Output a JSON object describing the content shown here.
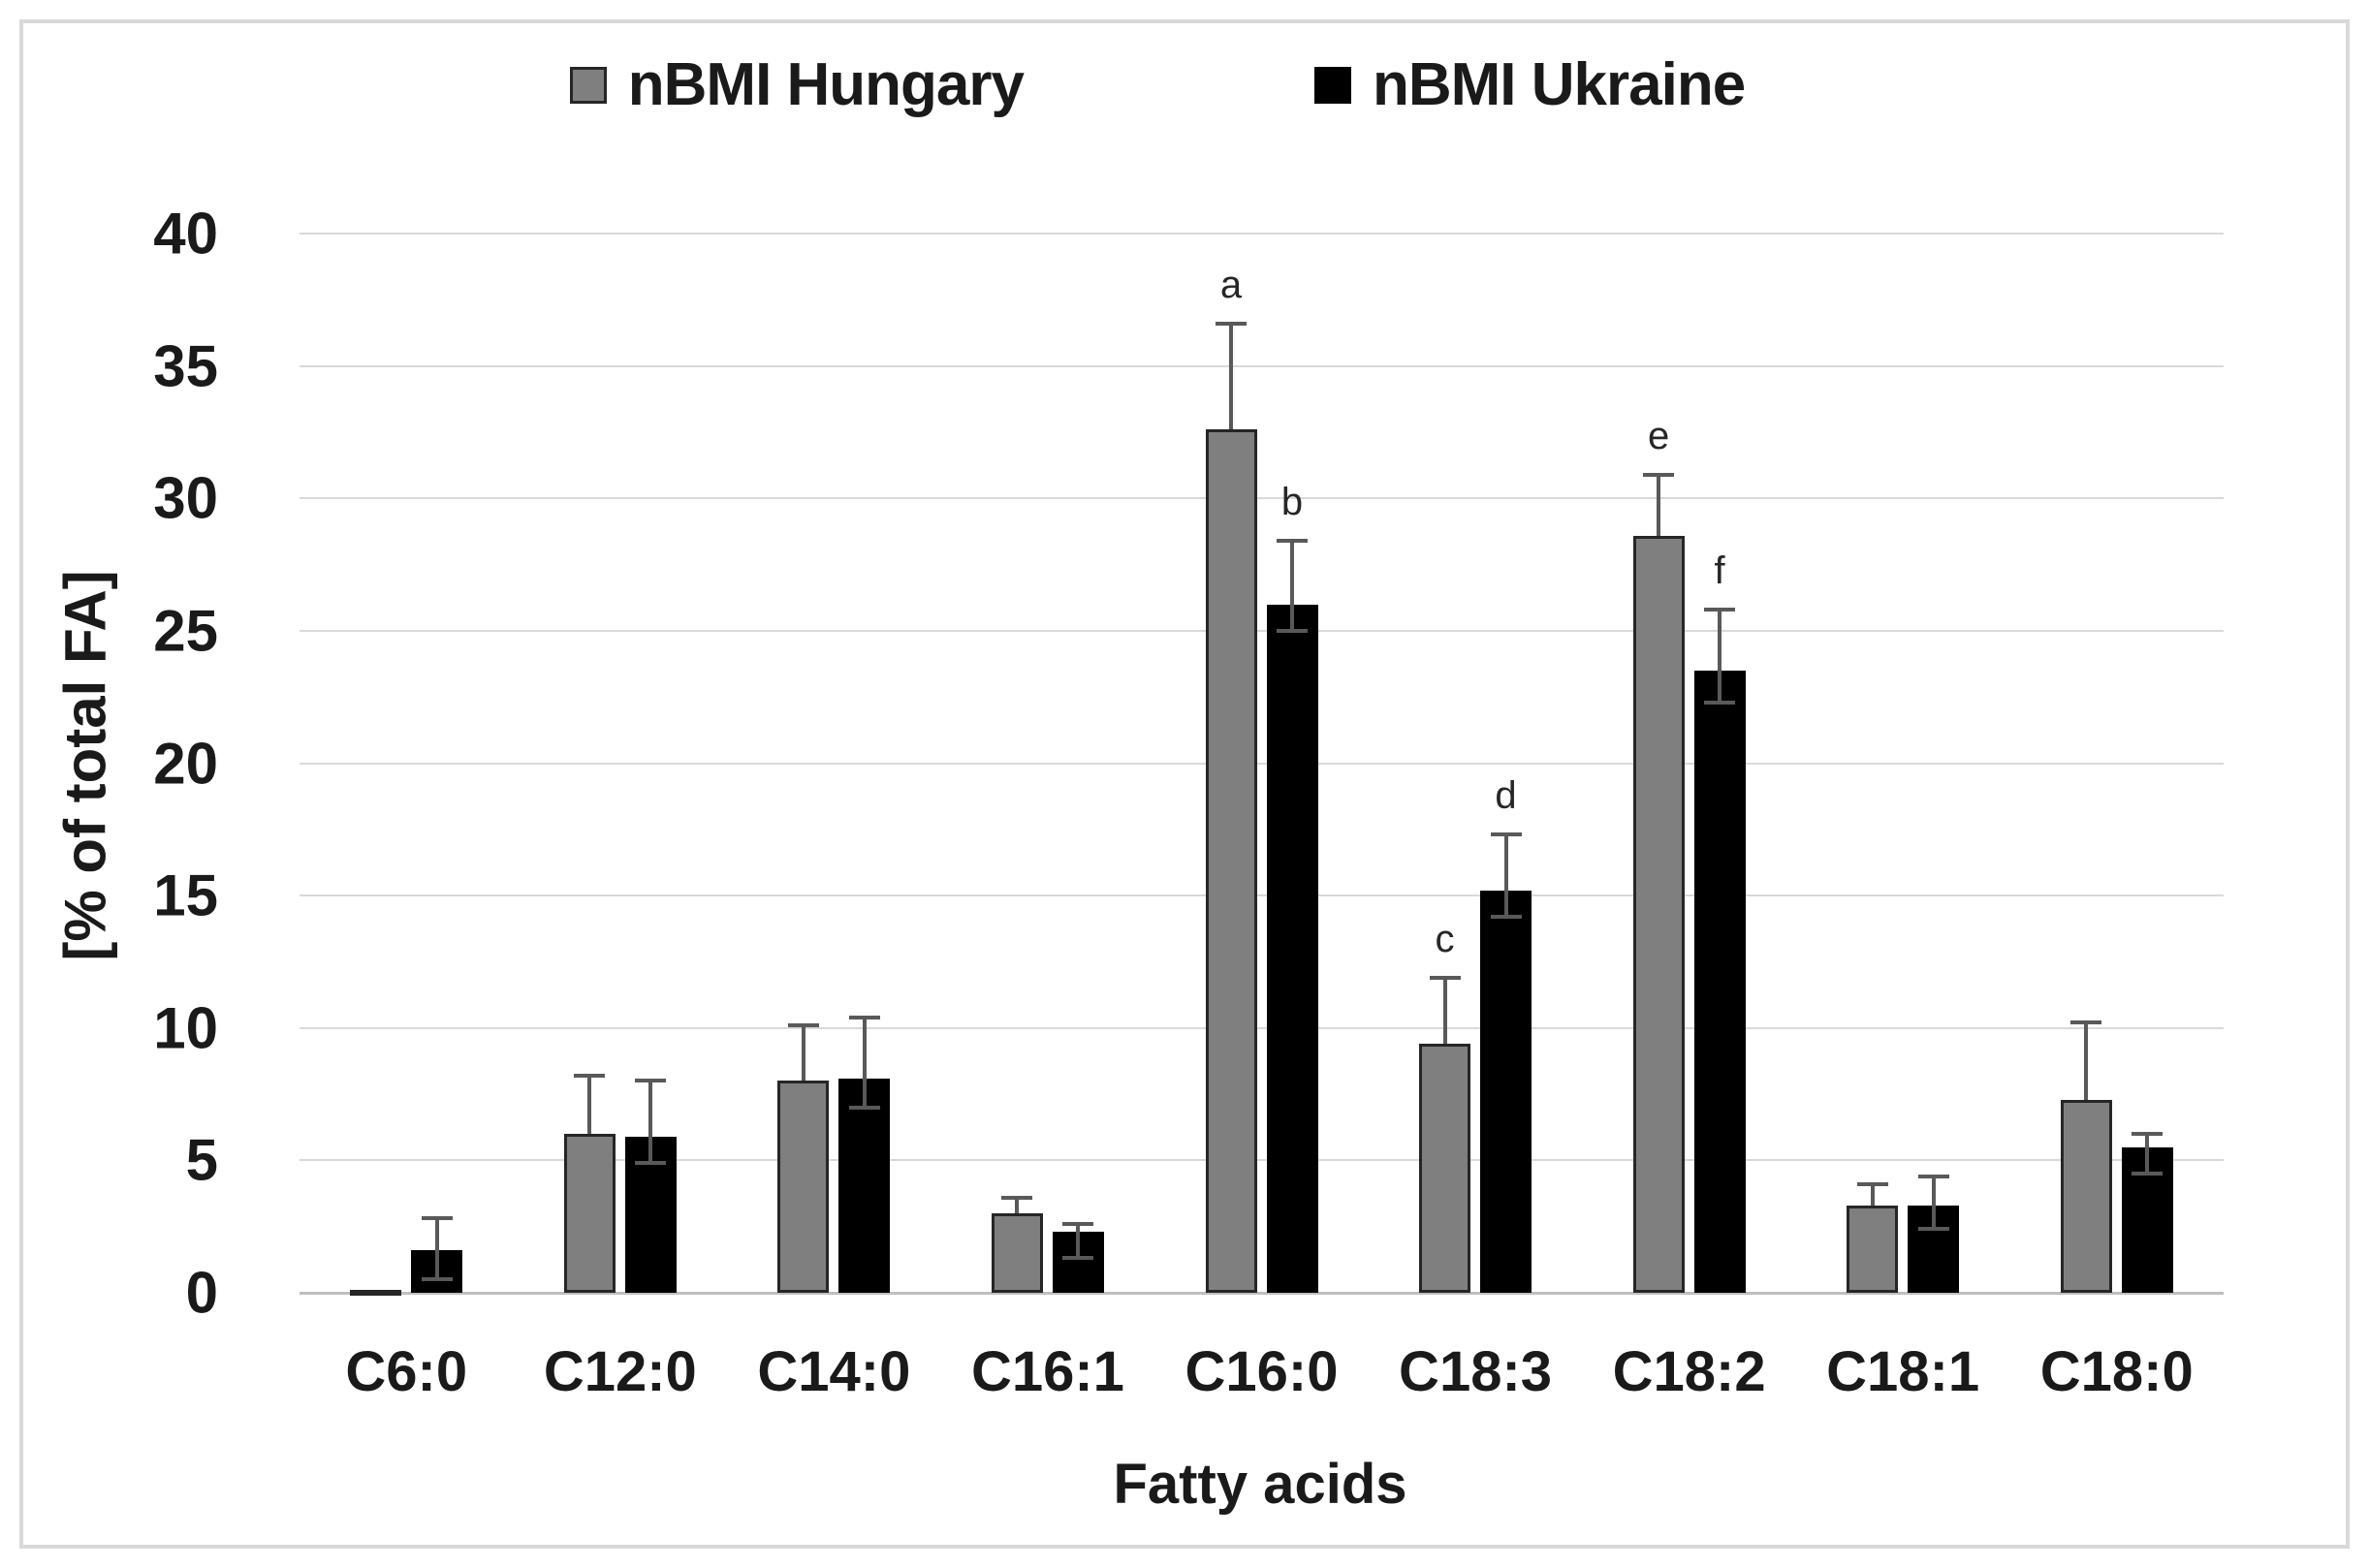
{
  "legend": {
    "items": [
      {
        "label": "nBMI Hungary",
        "color": "#7f7f7f"
      },
      {
        "label": "nBMI Ukraine",
        "color": "#000000"
      }
    ]
  },
  "colors": {
    "hungary_bar": "#7f7f7f",
    "ukraine_bar": "#000000",
    "bar_border": "#262626",
    "error_bar": "#595959",
    "gridline": "#d9d9d9",
    "axis_line": "#bfbfbf",
    "text": "#1a1a1a",
    "frame_border": "#d9d9d9"
  },
  "chart_data": {
    "type": "bar",
    "title": "",
    "xlabel": "Fatty acids",
    "ylabel": "[% of total FA]",
    "ylim": [
      0,
      40
    ],
    "ytick_step": 5,
    "grid": true,
    "legend_position": "top-center",
    "categories": [
      "C6:0",
      "C12:0",
      "C14:0",
      "C16:1",
      "C16:0",
      "C18:3",
      "C18:2",
      "C18:1",
      "C18:0"
    ],
    "series": [
      {
        "name": "nBMI Hungary",
        "color": "#7f7f7f",
        "values": [
          0.1,
          6.0,
          8.0,
          3.0,
          32.6,
          9.4,
          28.6,
          3.3,
          7.3
        ],
        "err_up": [
          0,
          2.2,
          2.1,
          0.6,
          4.0,
          2.5,
          2.3,
          0.8,
          2.9
        ],
        "err_down": [
          0,
          0,
          0,
          0,
          0,
          0,
          0,
          0,
          0
        ],
        "letters": [
          "",
          "",
          "",
          "",
          "a",
          "c",
          "e",
          "",
          ""
        ]
      },
      {
        "name": "nBMI Ukraine",
        "color": "#000000",
        "values": [
          1.6,
          5.9,
          8.1,
          2.3,
          26.0,
          15.2,
          23.5,
          3.3,
          5.5
        ],
        "err_up": [
          1.2,
          2.1,
          2.3,
          0.3,
          2.4,
          2.1,
          2.3,
          1.1,
          0.5
        ],
        "err_down": [
          1.1,
          1.0,
          1.1,
          1.0,
          1.0,
          1.0,
          1.2,
          0.9,
          1.0
        ],
        "letters": [
          "",
          "",
          "",
          "",
          "b",
          "d",
          "f",
          "",
          ""
        ]
      }
    ]
  }
}
